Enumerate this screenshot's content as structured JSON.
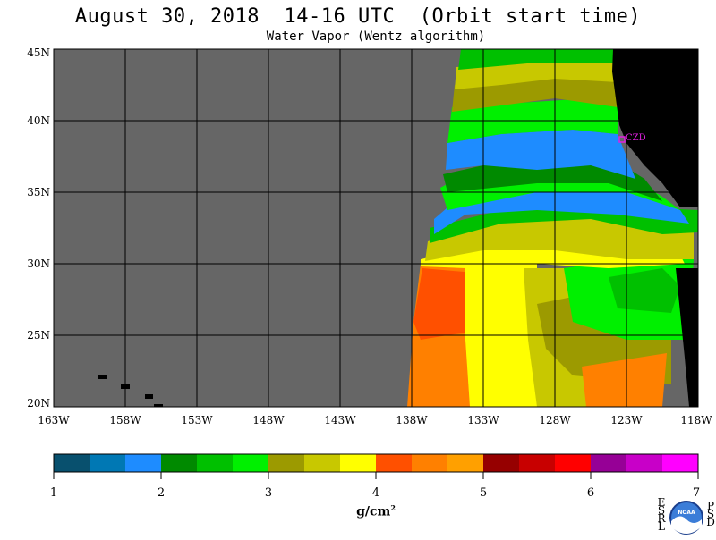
{
  "header": {
    "title": "August 30, 2018  14-16 UTC  (Orbit start time)",
    "subtitle": "Water Vapor (Wentz algorithm)"
  },
  "map": {
    "lat_labels": [
      "45N",
      "40N",
      "35N",
      "30N",
      "25N",
      "20N"
    ],
    "lon_labels": [
      "163W",
      "158W",
      "153W",
      "148W",
      "143W",
      "138W",
      "133W",
      "128W",
      "123W",
      "118W"
    ],
    "station_label": "CZD",
    "colors": {
      "no_data": "#666666",
      "land": "#000000",
      "grid": "#000000",
      "station": "#e020e0"
    }
  },
  "colorbar": {
    "tick_labels": [
      "1",
      "2",
      "3",
      "4",
      "5",
      "6",
      "7"
    ],
    "unit_label": "g/cm",
    "unit_exponent": "2",
    "colors": [
      "#08506e",
      "#0078b4",
      "#1e8cff",
      "#008a00",
      "#00c000",
      "#00f000",
      "#9c9a00",
      "#c8c800",
      "#ffff00",
      "#ff5000",
      "#ff8000",
      "#ffa000",
      "#960000",
      "#c80000",
      "#ff0000",
      "#960096",
      "#c800c8",
      "#ff00ff"
    ]
  },
  "logo": {
    "left_letters": "ESRL",
    "right_letters": "PSD",
    "center_text": "NOAA"
  }
}
